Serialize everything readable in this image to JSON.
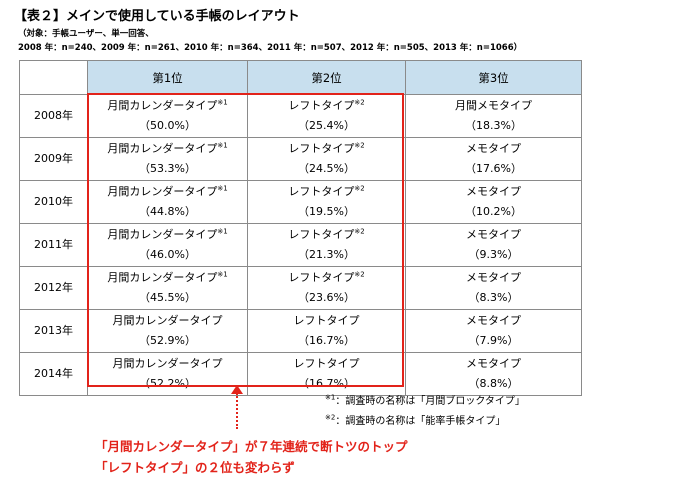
{
  "title": "【表２】メインで使用している手帳のレイアウト",
  "subtitle_line1": "（対象：手帳ユーザー、単一回答、",
  "subtitle_line2": "2008 年：n=240、2009 年：n=261、2010 年：n=364、2011 年：n=507、2012 年：n=505、2013 年：n=1066）",
  "table": {
    "headers": [
      "",
      "第1位",
      "第2位",
      "第3位"
    ],
    "rows": [
      {
        "year": "2008年",
        "r1": {
          "name": "月間カレンダータイプ",
          "mark": "※1",
          "pct": "（50.0%）"
        },
        "r2": {
          "name": "レフトタイプ",
          "mark": "※2",
          "pct": "（25.4%）"
        },
        "r3": {
          "name": "月間メモタイプ",
          "mark": "",
          "pct": "（18.3%）"
        }
      },
      {
        "year": "2009年",
        "r1": {
          "name": "月間カレンダータイプ",
          "mark": "※1",
          "pct": "（53.3%）"
        },
        "r2": {
          "name": "レフトタイプ",
          "mark": "※2",
          "pct": "（24.5%）"
        },
        "r3": {
          "name": "メモタイプ",
          "mark": "",
          "pct": "（17.6%）"
        }
      },
      {
        "year": "2010年",
        "r1": {
          "name": "月間カレンダータイプ",
          "mark": "※1",
          "pct": "（44.8%）"
        },
        "r2": {
          "name": "レフトタイプ",
          "mark": "※2",
          "pct": "（19.5%）"
        },
        "r3": {
          "name": "メモタイプ",
          "mark": "",
          "pct": "（10.2%）"
        }
      },
      {
        "year": "2011年",
        "r1": {
          "name": "月間カレンダータイプ",
          "mark": "※1",
          "pct": "（46.0%）"
        },
        "r2": {
          "name": "レフトタイプ",
          "mark": "※2",
          "pct": "（21.3%）"
        },
        "r3": {
          "name": "メモタイプ",
          "mark": "",
          "pct": "（9.3%）"
        }
      },
      {
        "year": "2012年",
        "r1": {
          "name": "月間カレンダータイプ",
          "mark": "※1",
          "pct": "（45.5%）"
        },
        "r2": {
          "name": "レフトタイプ",
          "mark": "※2",
          "pct": "（23.6%）"
        },
        "r3": {
          "name": "メモタイプ",
          "mark": "",
          "pct": "（8.3%）"
        }
      },
      {
        "year": "2013年",
        "r1": {
          "name": "月間カレンダータイプ",
          "mark": "",
          "pct": "（52.9%）"
        },
        "r2": {
          "name": "レフトタイプ",
          "mark": "",
          "pct": "（16.7%）"
        },
        "r3": {
          "name": "メモタイプ",
          "mark": "",
          "pct": "（7.9%）"
        }
      },
      {
        "year": "2014年",
        "r1": {
          "name": "月間カレンダータイプ",
          "mark": "",
          "pct": "（52.2%）"
        },
        "r2": {
          "name": "レフトタイプ",
          "mark": "",
          "pct": "（16.7%）"
        },
        "r3": {
          "name": "メモタイプ",
          "mark": "",
          "pct": "（8.8%）"
        }
      }
    ]
  },
  "notes": [
    {
      "mark": "※1",
      "text": "：調査時の名称は「月間ブロックタイプ」"
    },
    {
      "mark": "※2",
      "text": "：調査時の名称は「能率手帳タイプ」"
    }
  ],
  "conclusion": {
    "line1": "「月間カレンダータイプ」が７年連続で断トツのトップ",
    "line2": "「レフトタイプ」の２位も変わらず"
  },
  "colors": {
    "header_bg": "#c8dfee",
    "highlight": "#e2231a",
    "border": "#8a8a8a"
  }
}
